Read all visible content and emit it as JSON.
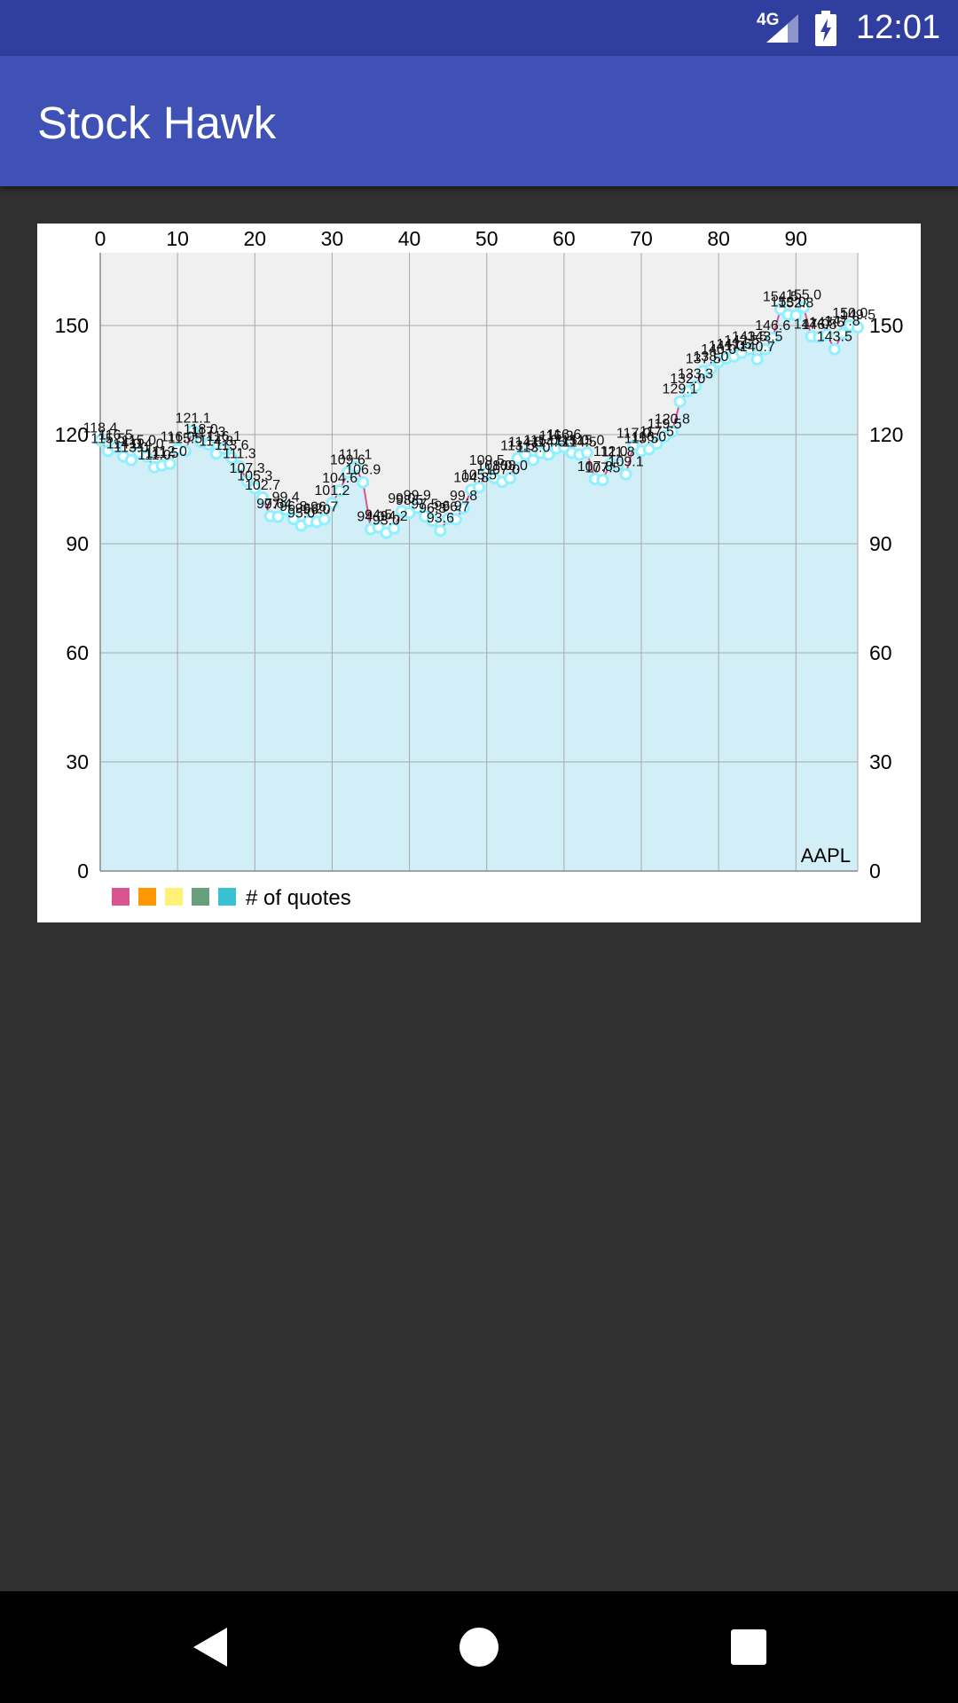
{
  "status_bar": {
    "network": "4G",
    "time": "12:01"
  },
  "app_bar": {
    "title": "Stock Hawk"
  },
  "chart_data": {
    "type": "line",
    "x": [
      0,
      1,
      2,
      3,
      4,
      5,
      6,
      7,
      8,
      9,
      10,
      11,
      12,
      13,
      14,
      15,
      16,
      17,
      18,
      19,
      20,
      21,
      22,
      23,
      24,
      25,
      26,
      27,
      28,
      29,
      30,
      31,
      32,
      33,
      34,
      35,
      36,
      37,
      38,
      39,
      40,
      41,
      42,
      43,
      44,
      45,
      46,
      47,
      48,
      49,
      50,
      51,
      52,
      53,
      54,
      55,
      56,
      57,
      58,
      59,
      60,
      61,
      62,
      63,
      64,
      65,
      66,
      67,
      68,
      69,
      70,
      71,
      72,
      73,
      74,
      75,
      76,
      77,
      78,
      79,
      80,
      81,
      82,
      83,
      84,
      85,
      86,
      87,
      88,
      89,
      90,
      91,
      92,
      93,
      94,
      95,
      96,
      97,
      98
    ],
    "values": [
      118.4,
      115.5,
      116.5,
      114.0,
      113.0,
      115.0,
      114.0,
      111.0,
      111.5,
      112.0,
      116.0,
      115.5,
      121.1,
      118.0,
      117.3,
      114.8,
      116.1,
      113.6,
      111.3,
      107.3,
      105.3,
      102.7,
      97.6,
      97.4,
      99.4,
      96.8,
      95.0,
      96.2,
      96.0,
      96.7,
      101.2,
      104.6,
      109.6,
      111.1,
      106.9,
      94.0,
      94.5,
      93.0,
      94.2,
      99.0,
      98.5,
      99.9,
      97.5,
      96.3,
      93.6,
      96.9,
      96.7,
      99.8,
      104.8,
      105.5,
      109.5,
      108.0,
      107.0,
      108.0,
      113.5,
      114.5,
      113.0,
      115.0,
      114.5,
      116.2,
      116.6,
      115.0,
      114.5,
      115.0,
      107.8,
      107.5,
      112.0,
      111.8,
      109.1,
      117.0,
      115.5,
      116.0,
      117.5,
      119.5,
      120.8,
      129.1,
      132.0,
      133.3,
      137.5,
      138.0,
      140.0,
      141.0,
      141.5,
      142.5,
      143.5,
      140.7,
      143.5,
      146.6,
      154.5,
      153.0,
      152.8,
      155.0,
      147.0,
      146.8,
      147.5,
      143.5,
      147.8,
      150.0,
      149.5
    ],
    "point_labels": [
      "118.4",
      "115.5",
      "116.5",
      "114.0",
      "113.0",
      "115.0",
      "114.0",
      "111.0",
      "111.5",
      "112.0",
      "116.0",
      "115.5",
      "121.1",
      "118.0",
      "117.3",
      "114.8",
      "116.1",
      "113.6",
      "111.3",
      "107.3",
      "105.3",
      "102.7",
      "97.6",
      "97.4",
      "99.4",
      "96.8",
      "95.0",
      "96.2",
      "96.0",
      "96.7",
      "101.2",
      "104.6",
      "109.6",
      "111.1",
      "106.9",
      "94.0",
      "94.5",
      "93.0",
      "94.2",
      "99.0",
      "98.5",
      "99.9",
      "97.5",
      "96.3",
      "93.6",
      "96.9",
      "96.7",
      "99.8",
      "104.8",
      "105.5",
      "109.5",
      "108.0",
      "107.0",
      "108.0",
      "113.5",
      "114.5",
      "113.0",
      "115.0",
      "114.5",
      "116.2",
      "116.6",
      "115.0",
      "114.5",
      "115.0",
      "107.8",
      "107.5",
      "112.0",
      "111.8",
      "109.1",
      "117.0",
      "115.5",
      "116.0",
      "117.5",
      "119.5",
      "120.8",
      "129.1",
      "132.0",
      "133.3",
      "137.5",
      "138.0",
      "140.0",
      "141.0",
      "141.5",
      "142.5",
      "143.5",
      "140.7",
      "143.5",
      "146.6",
      "154.5",
      "153.0",
      "152.8",
      "155.0",
      "147.0",
      "146.8",
      "147.5",
      "143.5",
      "147.8",
      "150.0",
      "149.5"
    ],
    "x_ticks": [
      0,
      10,
      20,
      30,
      40,
      50,
      60,
      70,
      80,
      90
    ],
    "y_ticks": [
      0,
      30,
      60,
      90,
      120,
      150
    ],
    "xlim": [
      0,
      98
    ],
    "ylim": [
      0,
      170
    ],
    "description": "AAPL",
    "legend_label": "# of quotes",
    "legend_colors": [
      "#d9558f",
      "#ff9800",
      "#fff176",
      "#689f7c",
      "#39c0d2"
    ],
    "line_color": "#d9558f",
    "fill_color": "#d2eef6",
    "point_color": "#8ff0ff",
    "grid": true,
    "legend_placement": "bottom-left"
  }
}
